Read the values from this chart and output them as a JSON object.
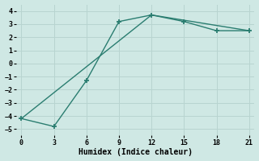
{
  "line1_x": [
    0,
    3,
    6,
    9,
    12,
    15,
    18,
    21
  ],
  "line1_y": [
    -4.2,
    -4.8,
    -1.3,
    3.2,
    3.7,
    3.2,
    2.5,
    2.5
  ],
  "line2_x": [
    0,
    12,
    21
  ],
  "line2_y": [
    -4.2,
    3.7,
    2.5
  ],
  "color": "#2a7d70",
  "bg_color": "#cfe8e4",
  "grid_color": "#b8d4d0",
  "xlabel": "Humidex (Indice chaleur)",
  "xlim": [
    -0.5,
    21.5
  ],
  "ylim": [
    -5.5,
    4.5
  ],
  "xticks": [
    0,
    3,
    6,
    9,
    12,
    15,
    18,
    21
  ],
  "yticks": [
    -5,
    -4,
    -3,
    -2,
    -1,
    0,
    1,
    2,
    3,
    4
  ],
  "marker": "+",
  "markersize": 5,
  "linewidth": 1.0,
  "font_family": "monospace",
  "xlabel_fontsize": 7,
  "tick_fontsize": 6
}
